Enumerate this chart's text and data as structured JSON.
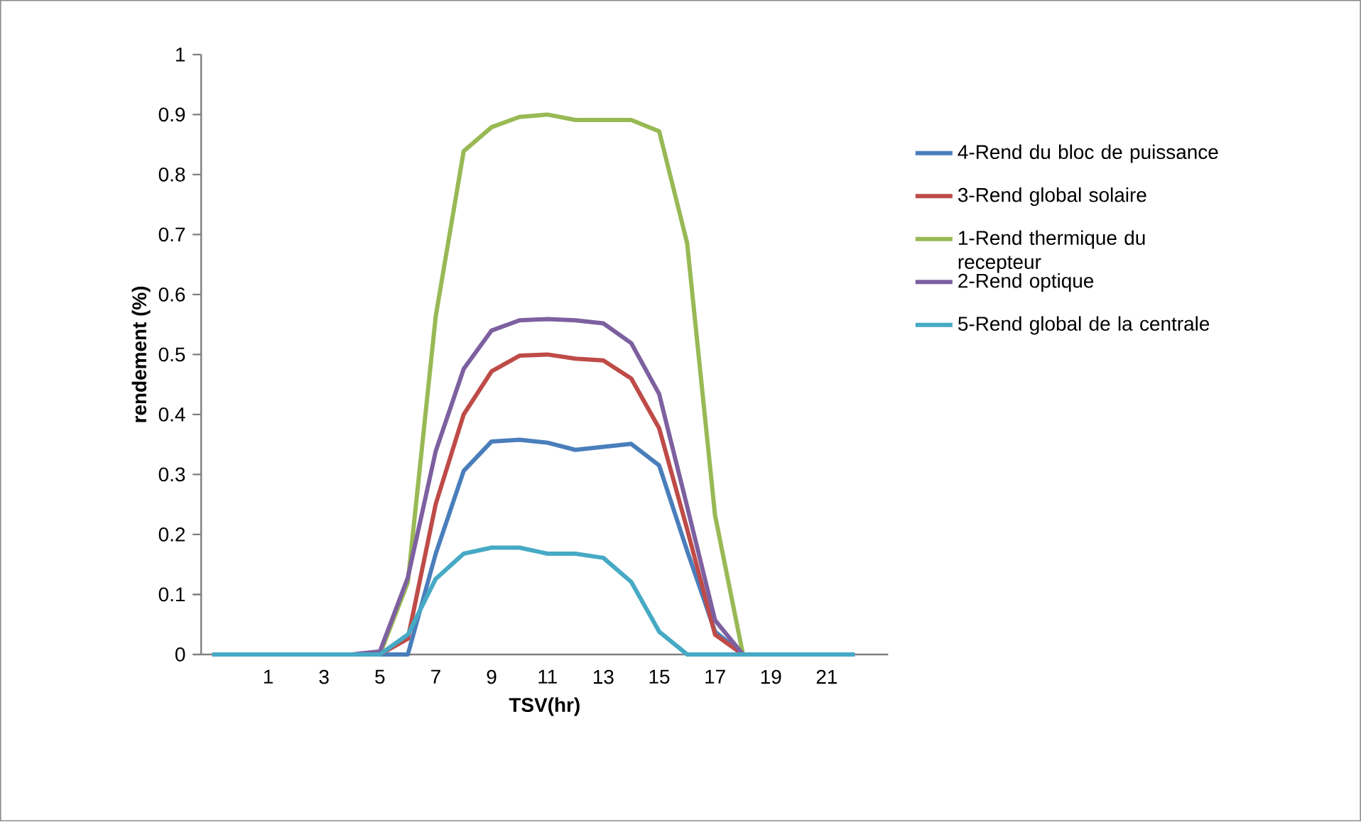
{
  "chart_data": {
    "type": "line",
    "xlabel": "TSV(hr)",
    "ylabel": "rendement (%)",
    "categories": [
      null,
      null,
      "1",
      null,
      "3",
      null,
      "5",
      null,
      "7",
      null,
      "9",
      null,
      "11",
      null,
      "13",
      null,
      "15",
      null,
      "17",
      null,
      "19",
      null,
      "21",
      null
    ],
    "ylim": [
      0,
      1
    ],
    "yticks": [
      0,
      0.1,
      0.2,
      0.3,
      0.4,
      0.5,
      0.6,
      0.7,
      0.8,
      0.9,
      1
    ],
    "legend": "right",
    "grid": false,
    "marker": "none",
    "line_style": "solid",
    "series": [
      {
        "name": "4-Rend du bloc de puissance",
        "color": "#4a7ebb",
        "values": [
          0,
          0,
          0,
          0,
          0,
          0,
          0,
          0,
          0.168,
          0.306,
          0.355,
          0.358,
          0.353,
          0.341,
          0.346,
          0.351,
          0.315,
          0.173,
          0.038,
          0,
          0,
          0,
          0,
          0
        ]
      },
      {
        "name": "3-Rend global solaire",
        "color": "#be4b48",
        "values": [
          null,
          null,
          null,
          null,
          null,
          0,
          0,
          0.026,
          0.251,
          0.4,
          0.472,
          0.498,
          0.5,
          0.493,
          0.49,
          0.46,
          0.377,
          0.209,
          0.033,
          0,
          0,
          null,
          null,
          null
        ]
      },
      {
        "name": "1-Rend thermique du recepteur",
        "color": "#98b954",
        "values": [
          null,
          null,
          null,
          null,
          null,
          0,
          0,
          0.12,
          0.564,
          0.839,
          0.879,
          0.896,
          0.9,
          0.891,
          0.891,
          0.891,
          0.872,
          0.686,
          0.232,
          0,
          0,
          null,
          null,
          null
        ]
      },
      {
        "name": "2-Rend optique",
        "color": "#7d60a0",
        "values": [
          0,
          0,
          0,
          0,
          0,
          0,
          0.005,
          0.128,
          0.339,
          0.476,
          0.54,
          0.557,
          0.559,
          0.557,
          0.552,
          0.519,
          0.434,
          0.247,
          0.057,
          0,
          0,
          0,
          0,
          0
        ]
      },
      {
        "name": "5-Rend global de la centrale",
        "color": "#46aac5",
        "values": [
          0,
          0,
          0,
          0,
          0,
          0,
          0,
          0.033,
          0.126,
          0.168,
          0.178,
          0.178,
          0.168,
          0.168,
          0.161,
          0.121,
          0.038,
          0,
          0,
          0,
          0,
          0,
          0,
          0
        ]
      }
    ]
  }
}
